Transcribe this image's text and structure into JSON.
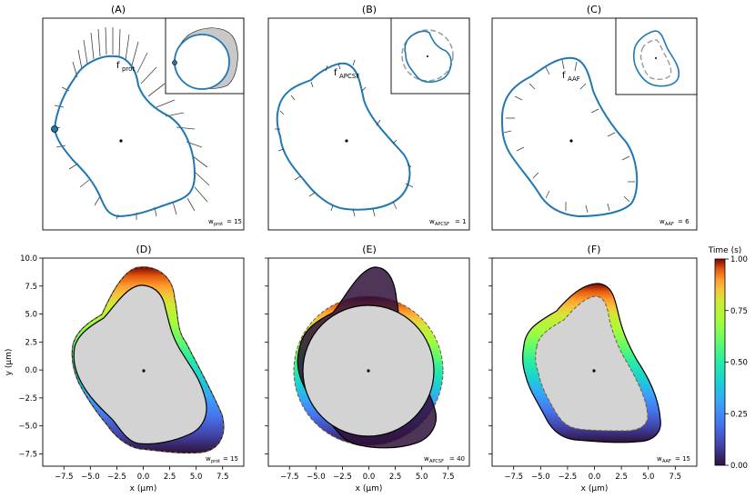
{
  "figure": {
    "panel_titles": [
      "(A)",
      "(B)",
      "(C)",
      "(D)",
      "(E)",
      "(F)"
    ],
    "top_row": [
      {
        "panel": "(A)",
        "force_label": "f",
        "force_sub": "prot",
        "weight_label": "w",
        "weight_sub": "prot",
        "weight_value": "= 15",
        "inset": "original cell with circular reference and shaded difference region"
      },
      {
        "panel": "(B)",
        "force_label": "f",
        "force_sub": "APCSF",
        "weight_label": "w",
        "weight_sub": "APCSF",
        "weight_value": "= 1",
        "inset": "cell outline with dashed reference circle"
      },
      {
        "panel": "(C)",
        "force_label": "f",
        "force_sub": "AAF",
        "weight_label": "w",
        "weight_sub": "AAF",
        "weight_value": "= 6",
        "inset": "cell outline with dashed shrunk outline"
      }
    ],
    "bottom_row": [
      {
        "panel": "(D)",
        "weight_label": "w",
        "weight_sub": "prot",
        "weight_value": "= 15"
      },
      {
        "panel": "(E)",
        "weight_label": "w",
        "weight_sub": "APCSF",
        "weight_value": "= 40"
      },
      {
        "panel": "(F)",
        "weight_label": "w",
        "weight_sub": "AAF",
        "weight_value": "= 15"
      }
    ],
    "colorbar": {
      "title": "Time (s)",
      "ticks": [
        "0.00",
        "0.25",
        "0.50",
        "0.75",
        "1.00"
      ],
      "colormap": "turbo"
    },
    "colors": {
      "outline": "#1f77b4",
      "fill": "#d3d3d3",
      "arrow": "#404040",
      "dashed": "#a0a0a0"
    }
  },
  "chart_data": [
    {
      "type": "line",
      "panel": "(D)",
      "title": "(D)",
      "xlabel": "x (μm)",
      "ylabel": "y (μm)",
      "xlim": [
        -9.5,
        9.5
      ],
      "ylim": [
        -8.6,
        10.0
      ],
      "xticks": [
        -7.5,
        -5.0,
        -2.5,
        0.0,
        2.5,
        5.0,
        7.5
      ],
      "yticks": [
        -7.5,
        -5.0,
        -2.5,
        0.0,
        2.5,
        5.0,
        7.5,
        10.0
      ],
      "xtick_labels": [
        "−7.5",
        "−5.0",
        "−2.5",
        "0.0",
        "2.5",
        "5.0",
        "7.5"
      ],
      "ytick_labels": [
        "−7.5",
        "−5.0",
        "−2.5",
        "0.0",
        "2.5",
        "5.0",
        "7.5",
        "10.0"
      ]
    },
    {
      "type": "line",
      "panel": "(E)",
      "title": "(E)",
      "xlabel": "x (μm)",
      "xlim": [
        -9.5,
        9.5
      ],
      "ylim": [
        -8.6,
        10.0
      ],
      "xticks": [
        -7.5,
        -5.0,
        -2.5,
        0.0,
        2.5,
        5.0,
        7.5
      ],
      "xtick_labels": [
        "−7.5",
        "−5.0",
        "−2.5",
        "0.0",
        "2.5",
        "5.0",
        "7.5"
      ]
    },
    {
      "type": "line",
      "panel": "(F)",
      "title": "(F)",
      "xlabel": "x (μm)",
      "xlim": [
        -9.5,
        9.5
      ],
      "ylim": [
        -8.6,
        10.0
      ],
      "xticks": [
        -7.5,
        -5.0,
        -2.5,
        0.0,
        2.5,
        5.0,
        7.5
      ],
      "xtick_labels": [
        "−7.5",
        "−5.0",
        "−2.5",
        "0.0",
        "2.5",
        "5.0",
        "7.5"
      ]
    }
  ]
}
